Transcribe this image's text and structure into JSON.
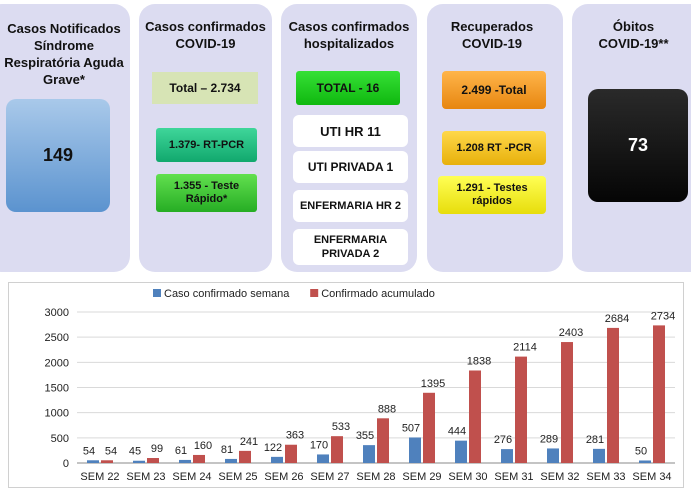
{
  "cards": [
    {
      "title": "Casos Notificados\nSíndrome\nRespiratória Aguda\nGrave*",
      "value": "149"
    },
    {
      "title": "Casos confirmados\nCOVID-19",
      "total": "Total – 2.734",
      "rtpcr": "1.379- RT-PCR",
      "rapido": "1.355  - Teste\nRápido*"
    },
    {
      "title": "Casos confirmados\nhospitalizados",
      "total": "TOTAL - 16",
      "items": [
        "UTI HR 11",
        "UTI PRIVADA 1",
        "ENFERMARIA HR 2",
        "ENFERMARIA\nPRIVADA 2"
      ]
    },
    {
      "title": "Recuperados\nCOVID-19",
      "total": "2.499 -Total",
      "rtpcr": "1.208 RT -PCR",
      "rapido": "1.291 - Testes\nrápidos"
    },
    {
      "title": "Óbitos\nCOVID-19**",
      "value": "73"
    }
  ],
  "colors": {
    "series_weekly": "#4f81bd",
    "series_cumulative": "#c0504d",
    "card_bg": "#dcdcf1"
  },
  "chart_data": {
    "type": "bar",
    "categories": [
      "SEM 22",
      "SEM 23",
      "SEM 24",
      "SEM 25",
      "SEM 26",
      "SEM 27",
      "SEM 28",
      "SEM 29",
      "SEM 30",
      "SEM 31",
      "SEM 32",
      "SEM 33",
      "SEM 34"
    ],
    "series": [
      {
        "name": "Caso confirmado semana",
        "values": [
          54,
          45,
          61,
          81,
          122,
          170,
          355,
          507,
          444,
          276,
          289,
          281,
          50
        ]
      },
      {
        "name": "Confirmado acumulado",
        "values": [
          54,
          99,
          160,
          241,
          363,
          533,
          888,
          1395,
          1838,
          2114,
          2403,
          2684,
          2734
        ]
      }
    ],
    "ylim": [
      0,
      3000
    ],
    "yticks": [
      0,
      500,
      1000,
      1500,
      2000,
      2500,
      3000
    ],
    "legend": "top",
    "grid": true
  }
}
